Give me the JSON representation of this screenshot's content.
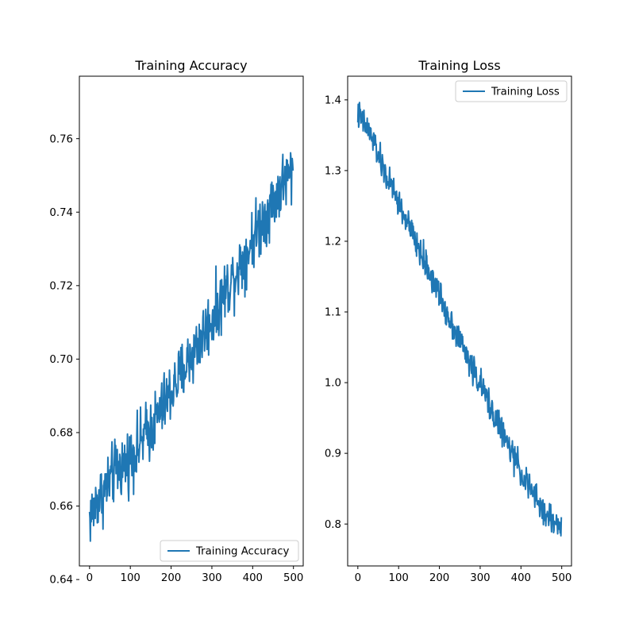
{
  "colors": {
    "series": "#1f77b4",
    "axes": "#000000",
    "legend_edge": "#cccccc"
  },
  "chart_data": [
    {
      "type": "line",
      "title": "Training Accuracy",
      "xlabel": "",
      "ylabel": "",
      "xlim": [
        -24.95,
        523.95
      ],
      "ylim": [
        0.6437,
        0.777
      ],
      "xticks": [
        0,
        100,
        200,
        300,
        400,
        500
      ],
      "yticks": [
        0.64,
        0.66,
        0.68,
        0.7,
        0.72,
        0.74,
        0.76
      ],
      "ytick_labels": [
        "0.64",
        "0.66",
        "0.68",
        "0.70",
        "0.72",
        "0.74",
        "0.76"
      ],
      "legend_position": "lower-right",
      "series": [
        {
          "name": "Training Accuracy",
          "noisy": true,
          "x": [
            0,
            10,
            20,
            30,
            40,
            50,
            60,
            70,
            80,
            90,
            100,
            110,
            120,
            130,
            140,
            150,
            160,
            170,
            180,
            190,
            200,
            210,
            220,
            230,
            240,
            250,
            260,
            270,
            280,
            290,
            300,
            310,
            320,
            330,
            340,
            350,
            360,
            370,
            380,
            390,
            400,
            410,
            420,
            430,
            440,
            450,
            460,
            470,
            480,
            490,
            499
          ],
          "y": [
            0.657,
            0.659,
            0.662,
            0.663,
            0.665,
            0.667,
            0.669,
            0.67,
            0.671,
            0.672,
            0.673,
            0.675,
            0.676,
            0.678,
            0.68,
            0.681,
            0.683,
            0.685,
            0.687,
            0.689,
            0.691,
            0.693,
            0.695,
            0.697,
            0.699,
            0.701,
            0.703,
            0.705,
            0.707,
            0.709,
            0.711,
            0.713,
            0.715,
            0.718,
            0.72,
            0.722,
            0.724,
            0.726,
            0.728,
            0.73,
            0.733,
            0.735,
            0.737,
            0.739,
            0.741,
            0.743,
            0.745,
            0.747,
            0.749,
            0.75,
            0.751
          ]
        }
      ]
    },
    {
      "type": "line",
      "title": "Training Loss",
      "xlabel": "",
      "ylabel": "",
      "xlim": [
        -24.95,
        523.95
      ],
      "ylim": [
        0.7407,
        1.4335
      ],
      "xticks": [
        0,
        100,
        200,
        300,
        400,
        500
      ],
      "yticks": [
        0.8,
        0.9,
        1.0,
        1.1,
        1.2,
        1.3,
        1.4
      ],
      "ytick_labels": [
        "0.8",
        "0.9",
        "1.0",
        "1.1",
        "1.2",
        "1.3",
        "1.4"
      ],
      "legend_position": "upper-right",
      "series": [
        {
          "name": "Training Loss",
          "noisy": true,
          "x": [
            0,
            10,
            20,
            30,
            40,
            50,
            60,
            70,
            80,
            90,
            100,
            110,
            120,
            130,
            140,
            150,
            160,
            170,
            180,
            190,
            200,
            210,
            220,
            230,
            240,
            250,
            260,
            270,
            280,
            290,
            300,
            310,
            320,
            330,
            340,
            350,
            360,
            370,
            380,
            390,
            400,
            410,
            420,
            430,
            440,
            450,
            460,
            470,
            480,
            490,
            499
          ],
          "y": [
            1.38,
            1.37,
            1.362,
            1.352,
            1.34,
            1.322,
            1.305,
            1.292,
            1.28,
            1.268,
            1.255,
            1.24,
            1.228,
            1.215,
            1.2,
            1.188,
            1.175,
            1.163,
            1.15,
            1.138,
            1.125,
            1.11,
            1.098,
            1.085,
            1.072,
            1.06,
            1.048,
            1.035,
            1.022,
            1.01,
            0.998,
            0.985,
            0.972,
            0.96,
            0.948,
            0.935,
            0.922,
            0.91,
            0.898,
            0.886,
            0.875,
            0.862,
            0.852,
            0.842,
            0.832,
            0.823,
            0.815,
            0.808,
            0.803,
            0.8,
            0.798
          ]
        }
      ]
    }
  ]
}
